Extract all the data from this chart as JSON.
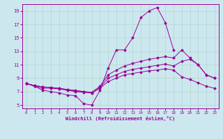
{
  "xlabel": "Windchill (Refroidissement éolien,°C)",
  "bg_color": "#cce8ee",
  "line_color": "#990099",
  "xlim": [
    -0.5,
    23.5
  ],
  "ylim": [
    4.5,
    20
  ],
  "xticks": [
    0,
    1,
    2,
    3,
    4,
    5,
    6,
    7,
    8,
    9,
    10,
    11,
    12,
    13,
    14,
    15,
    16,
    17,
    18,
    19,
    20,
    21,
    22,
    23
  ],
  "yticks": [
    5,
    7,
    9,
    11,
    13,
    15,
    17,
    19
  ],
  "grid_color": "#b0d8cc",
  "series1_x": [
    0,
    1,
    2,
    3,
    4,
    5,
    6,
    7,
    8,
    9,
    10,
    11,
    12,
    13,
    14,
    15,
    16,
    17,
    18
  ],
  "series1_y": [
    8.2,
    7.8,
    7.2,
    7.0,
    6.8,
    6.5,
    6.4,
    5.2,
    5.0,
    7.2,
    10.5,
    13.2,
    13.2,
    15.0,
    18.0,
    19.0,
    19.5,
    17.2,
    13.2
  ],
  "series2_x": [
    0,
    1,
    2,
    3,
    4,
    5,
    6,
    7,
    8,
    9,
    10,
    11,
    12,
    13,
    14,
    15,
    16,
    17,
    18,
    19,
    20,
    21,
    22,
    23
  ],
  "series2_y": [
    8.2,
    7.9,
    7.7,
    7.6,
    7.5,
    7.3,
    7.2,
    7.0,
    6.9,
    7.8,
    9.5,
    10.2,
    10.8,
    11.2,
    11.5,
    11.8,
    12.0,
    12.2,
    12.0,
    13.2,
    12.0,
    11.0,
    9.5,
    9.0
  ],
  "series3_x": [
    0,
    1,
    2,
    3,
    4,
    5,
    6,
    7,
    8,
    9,
    10,
    11,
    12,
    13,
    14,
    15,
    16,
    17,
    18,
    19,
    20,
    21,
    22,
    23
  ],
  "series3_y": [
    8.2,
    7.9,
    7.7,
    7.6,
    7.5,
    7.3,
    7.1,
    7.0,
    6.8,
    7.6,
    9.0,
    9.5,
    10.0,
    10.3,
    10.5,
    10.7,
    10.9,
    11.1,
    10.8,
    11.5,
    11.8,
    11.0,
    9.5,
    9.0
  ],
  "series4_x": [
    0,
    1,
    2,
    3,
    4,
    5,
    6,
    7,
    8,
    9,
    10,
    11,
    12,
    13,
    14,
    15,
    16,
    17,
    18,
    19,
    20,
    21,
    22,
    23
  ],
  "series4_y": [
    8.2,
    7.8,
    7.5,
    7.5,
    7.4,
    7.2,
    7.0,
    6.9,
    6.8,
    7.5,
    8.5,
    9.0,
    9.5,
    9.7,
    9.9,
    10.1,
    10.2,
    10.4,
    10.2,
    9.2,
    8.8,
    8.3,
    7.8,
    7.5
  ]
}
